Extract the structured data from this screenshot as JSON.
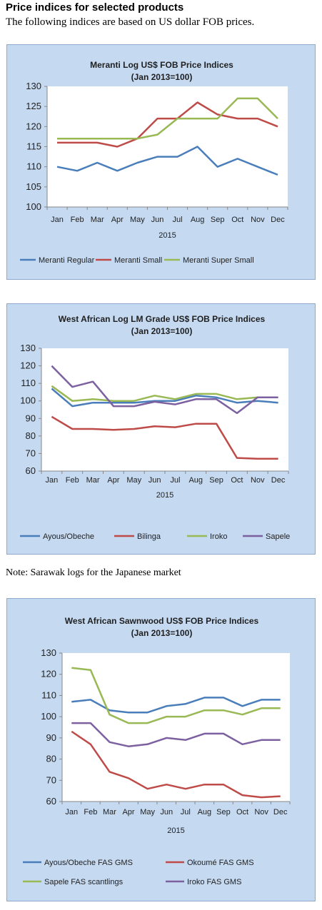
{
  "page": {
    "heading": "Price indices for selected products",
    "subheading": "The following indices are based on US dollar FOB prices.",
    "note": "Note: Sarawak logs for the Japanese market"
  },
  "chart_data": [
    {
      "type": "line",
      "title": "Meranti Log US$ FOB Price Indices",
      "subtitle": "(Jan 2013=100)",
      "xlabel": "2015",
      "categories": [
        "Jan",
        "Feb",
        "Mar",
        "Apr",
        "May",
        "Jun",
        "Jul",
        "Aug",
        "Sep",
        "Oct",
        "Nov",
        "Dec"
      ],
      "ylim": [
        100,
        130
      ],
      "yticks": [
        100,
        105,
        110,
        115,
        120,
        125,
        130
      ],
      "grid": false,
      "legend": "bottom",
      "series": [
        {
          "name": "Meranti Regular",
          "color": "#4a7ebb",
          "values": [
            110,
            109,
            111,
            109,
            111,
            112.5,
            112.5,
            115,
            110,
            112,
            110,
            108
          ]
        },
        {
          "name": "Meranti Small",
          "color": "#be4b48",
          "values": [
            116,
            116,
            116,
            115,
            117,
            122,
            122,
            126,
            123,
            122,
            122,
            120
          ]
        },
        {
          "name": "Meranti Super Small",
          "color": "#98b954",
          "values": [
            117,
            117,
            117,
            117,
            117,
            118,
            122,
            122,
            122,
            127,
            127,
            122
          ]
        }
      ]
    },
    {
      "type": "line",
      "title": "West African Log LM Grade US$ FOB Price Indices",
      "subtitle": "(Jan 2013=100)",
      "xlabel": "2015",
      "categories": [
        "Jan",
        "Feb",
        "Mar",
        "Apr",
        "May",
        "Jun",
        "Jul",
        "Aug",
        "Sep",
        "Oct",
        "Nov",
        "Dec"
      ],
      "ylim": [
        60,
        130
      ],
      "yticks": [
        60,
        70,
        80,
        90,
        100,
        110,
        120,
        130
      ],
      "grid": false,
      "legend": "bottom",
      "series": [
        {
          "name": "Ayous/Obeche",
          "color": "#4a7ebb",
          "values": [
            107,
            97,
            99,
            99,
            99,
            100,
            100,
            103,
            102,
            99,
            100,
            99
          ]
        },
        {
          "name": "Bilinga",
          "color": "#be4b48",
          "values": [
            91,
            84,
            84,
            83.5,
            84,
            85.5,
            85,
            87,
            87,
            67.5,
            67,
            67
          ]
        },
        {
          "name": "Iroko",
          "color": "#98b954",
          "values": [
            108.5,
            100,
            101,
            100,
            100,
            103,
            101,
            104,
            104,
            101,
            102,
            102
          ]
        },
        {
          "name": "Sapele",
          "color": "#7d60a0",
          "values": [
            120,
            108,
            111,
            97,
            97,
            99.5,
            98,
            101,
            101,
            93,
            102,
            102
          ]
        }
      ]
    },
    {
      "type": "line",
      "title": "West African Sawnwood US$ FOB Price Indices",
      "subtitle": "(Jan 2013=100)",
      "xlabel": "2015",
      "categories": [
        "Jan",
        "Feb",
        "Mar",
        "Apr",
        "May",
        "Jun",
        "Jul",
        "Aug",
        "Sep",
        "Oct",
        "Nov",
        "Dec"
      ],
      "ylim": [
        60,
        130
      ],
      "yticks": [
        60,
        70,
        80,
        90,
        100,
        110,
        120,
        130
      ],
      "grid": false,
      "legend": "bottom",
      "series": [
        {
          "name": "Ayous/Obeche  FAS GMS",
          "color": "#4a7ebb",
          "values": [
            107,
            108,
            103,
            102,
            102,
            105,
            106,
            109,
            109,
            105,
            108,
            108
          ]
        },
        {
          "name": "Okoumé  FAS GMS",
          "color": "#be4b48",
          "values": [
            93,
            87,
            74,
            71,
            66,
            68,
            66,
            68,
            68,
            63,
            62,
            62.5
          ]
        },
        {
          "name": "Sapele FAS scantlings",
          "color": "#98b954",
          "values": [
            123,
            122,
            101,
            97,
            97,
            100,
            100,
            103,
            103,
            101,
            104,
            104
          ]
        },
        {
          "name": "Iroko FAS GMS",
          "color": "#7d60a0",
          "values": [
            97,
            97,
            88,
            86,
            87,
            90,
            89,
            92,
            92,
            87,
            89,
            89
          ]
        }
      ]
    }
  ]
}
